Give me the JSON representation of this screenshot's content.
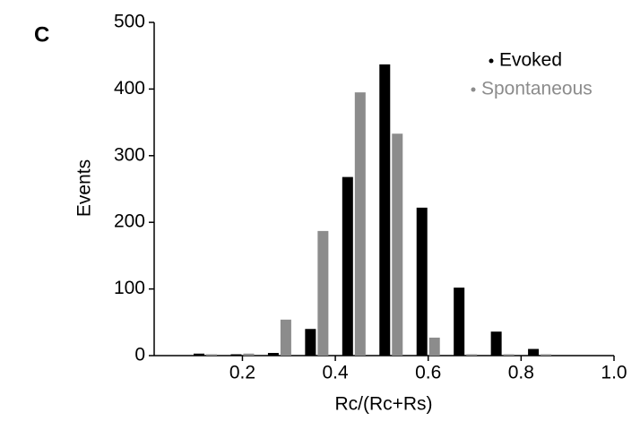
{
  "chart_data": {
    "type": "bar",
    "panel_label": "C",
    "xlabel": "Rc/(Rc+Rs)",
    "ylabel": "Events",
    "x": [
      0.12,
      0.2,
      0.28,
      0.36,
      0.44,
      0.52,
      0.6,
      0.68,
      0.76,
      0.84
    ],
    "series": [
      {
        "name": "Evoked",
        "color": "#000000",
        "values": [
          3,
          2,
          4,
          40,
          268,
          437,
          222,
          102,
          36,
          10
        ]
      },
      {
        "name": "Spontaneous",
        "color": "#8c8c8c",
        "values": [
          2,
          3,
          54,
          187,
          395,
          333,
          27,
          2,
          2,
          2
        ]
      }
    ],
    "xlim": [
      0.01,
      1.0
    ],
    "xticks": [
      0.2,
      0.4,
      0.6,
      0.8,
      {
        "value": 1.0,
        "label": "1.0"
      }
    ],
    "ylim": [
      0,
      500
    ],
    "yticks": [
      0,
      100,
      200,
      300,
      400,
      500
    ],
    "legend": "upper right",
    "grid": false
  }
}
